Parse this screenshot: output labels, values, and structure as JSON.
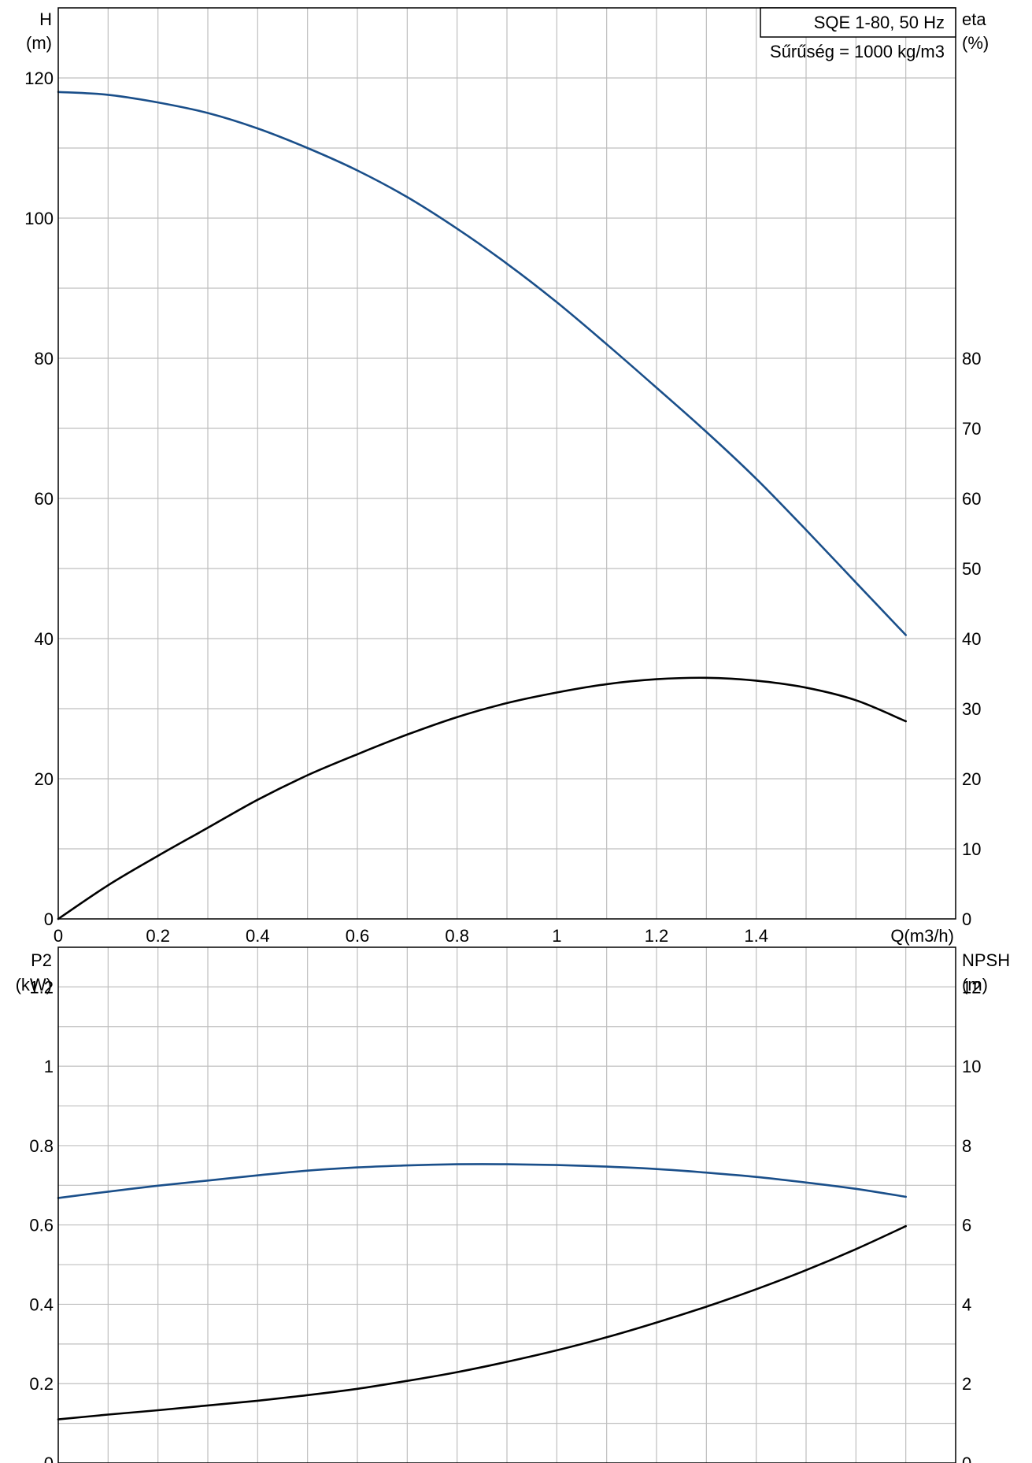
{
  "legend": {
    "model": "SQE 1-80, 50 Hz",
    "density": "Sűrűség = 1000 kg/m3"
  },
  "chart_data": [
    {
      "type": "line",
      "panel": "top",
      "x_ticks": [
        "0",
        "0.2",
        "0.4",
        "0.6",
        "0.8",
        "1",
        "1.2",
        "1.4"
      ],
      "x_axis_label": "Q(m3/h)",
      "xlim": [
        0,
        1.8
      ],
      "left_axis": {
        "label_line1": "H",
        "label_line2": "(m)",
        "ylim": [
          0,
          130
        ],
        "ticks": [
          "0",
          "20",
          "40",
          "60",
          "80",
          "100",
          "120"
        ]
      },
      "right_axis": {
        "label_line1": "eta",
        "label_line2": "(%)",
        "ylim": [
          0,
          130
        ],
        "ticks": [
          "0",
          "10",
          "20",
          "30",
          "40",
          "50",
          "60",
          "70",
          "80"
        ]
      },
      "grid": true,
      "series": [
        {
          "axis": "left",
          "color": "#1a4f8a",
          "x": [
            0,
            0.1,
            0.2,
            0.3,
            0.4,
            0.5,
            0.6,
            0.7,
            0.8,
            0.9,
            1.0,
            1.1,
            1.2,
            1.3,
            1.4,
            1.5,
            1.6,
            1.7
          ],
          "y": [
            118,
            117.6,
            116.5,
            115,
            112.8,
            110,
            106.8,
            103,
            98.5,
            93.5,
            88,
            82,
            75.8,
            69.5,
            62.8,
            55.5,
            48,
            40.5
          ]
        },
        {
          "axis": "right",
          "color": "#000000",
          "x": [
            0,
            0.1,
            0.2,
            0.3,
            0.4,
            0.5,
            0.6,
            0.7,
            0.8,
            0.9,
            1.0,
            1.1,
            1.2,
            1.3,
            1.4,
            1.5,
            1.6,
            1.7
          ],
          "y": [
            0,
            4.8,
            9,
            13,
            17,
            20.5,
            23.5,
            26.3,
            28.8,
            30.8,
            32.3,
            33.5,
            34.2,
            34.4,
            34,
            33,
            31.2,
            28.2
          ]
        }
      ]
    },
    {
      "type": "line",
      "panel": "bottom",
      "xlim": [
        0,
        1.8
      ],
      "left_axis": {
        "label_line1": "P2",
        "label_line2": "(kW)",
        "ylim": [
          0,
          1.3
        ],
        "ticks": [
          "0",
          "0.2",
          "0.4",
          "0.6",
          "0.8",
          "1",
          "1.2"
        ]
      },
      "right_axis": {
        "label_line1": "NPSH",
        "label_line2": "(m)",
        "ylim": [
          0,
          13
        ],
        "ticks": [
          "0",
          "2",
          "4",
          "6",
          "8",
          "10",
          "12"
        ]
      },
      "grid": true,
      "series": [
        {
          "axis": "left",
          "color": "#1a4f8a",
          "x": [
            0,
            0.1,
            0.2,
            0.3,
            0.4,
            0.5,
            0.6,
            0.7,
            0.8,
            0.9,
            1.0,
            1.1,
            1.2,
            1.3,
            1.4,
            1.5,
            1.6,
            1.7
          ],
          "y": [
            0.668,
            0.684,
            0.699,
            0.712,
            0.725,
            0.737,
            0.745,
            0.75,
            0.753,
            0.753,
            0.751,
            0.747,
            0.741,
            0.732,
            0.721,
            0.707,
            0.691,
            0.671
          ]
        },
        {
          "axis": "left",
          "color": "#000000",
          "x": [
            0,
            0.1,
            0.2,
            0.3,
            0.4,
            0.5,
            0.6,
            0.7,
            0.8,
            0.9,
            1.0,
            1.1,
            1.2,
            1.3,
            1.4,
            1.5,
            1.6,
            1.7
          ],
          "y": [
            0.11,
            0.122,
            0.133,
            0.145,
            0.157,
            0.171,
            0.187,
            0.207,
            0.229,
            0.255,
            0.284,
            0.317,
            0.354,
            0.394,
            0.438,
            0.486,
            0.539,
            0.597
          ]
        }
      ]
    }
  ]
}
